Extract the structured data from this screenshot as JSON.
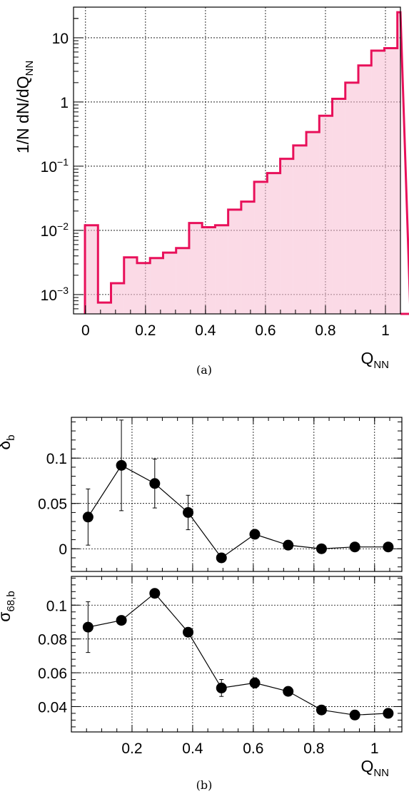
{
  "chart_data": [
    {
      "type": "histogram",
      "panel_label": "(a)",
      "ylabel": "1/N dN/dQ",
      "ylabel_sub": "NN",
      "xlabel": "Q",
      "xlabel_sub": "NN",
      "xlim": [
        -0.04,
        1.05
      ],
      "ylim": [
        0.0005,
        30
      ],
      "y_scale": "log",
      "grid": true,
      "x_ticks": [
        0,
        0.2,
        0.4,
        0.6,
        0.8,
        1
      ],
      "x_tick_labels": [
        "0",
        "0.2",
        "0.4",
        "0.6",
        "0.8",
        "1"
      ],
      "y_ticks": [
        0.001,
        0.01,
        0.1,
        1,
        10
      ],
      "y_tick_labels": [
        {
          "base": "10",
          "exp": "−3"
        },
        {
          "base": "10",
          "exp": "−2"
        },
        {
          "base": "10",
          "exp": "−1"
        },
        {
          "base": "1",
          "exp": ""
        },
        {
          "base": "10",
          "exp": ""
        }
      ],
      "bin_width": 0.0434,
      "bin_edges_start": -0.0018,
      "values": [
        0.012,
        0.00075,
        0.0015,
        0.0038,
        0.0031,
        0.0037,
        0.0045,
        0.0053,
        0.013,
        0.0112,
        0.012,
        0.021,
        0.028,
        0.057,
        0.078,
        0.13,
        0.21,
        0.34,
        0.61,
        1.12,
        2.0,
        3.7,
        6.3,
        6.9,
        25,
        0.00035
      ],
      "colors": {
        "line": "#e8105a",
        "fill": "#f7bcd2"
      }
    },
    {
      "type": "scatter",
      "panel_label": "(b)",
      "ylabel": "δ",
      "ylabel_sub": "b",
      "xlim": [
        0,
        1.09
      ],
      "ylim": [
        -0.025,
        0.145
      ],
      "grid": true,
      "y_ticks": [
        0,
        0.05,
        0.1
      ],
      "y_tick_labels": [
        "0",
        "0.05",
        "0.1"
      ],
      "x_ticks": [
        0.2,
        0.4,
        0.6,
        0.8,
        1
      ],
      "x": [
        0.055,
        0.165,
        0.275,
        0.385,
        0.495,
        0.605,
        0.715,
        0.825,
        0.935,
        1.045
      ],
      "values": [
        0.035,
        0.092,
        0.072,
        0.04,
        -0.01,
        0.016,
        0.004,
        0.0,
        0.002,
        0.002
      ],
      "errors": [
        0.031,
        0.05,
        0.027,
        0.019,
        0.004,
        0.003,
        0.002,
        0.002,
        0.002,
        0.002
      ]
    },
    {
      "type": "scatter",
      "ylabel": "σ",
      "ylabel_sub": "68,b",
      "xlabel": "Q",
      "xlabel_sub": "NN",
      "xlim": [
        0,
        1.09
      ],
      "ylim": [
        0.025,
        0.117
      ],
      "grid": true,
      "y_ticks": [
        0.04,
        0.06,
        0.08,
        0.1
      ],
      "y_tick_labels": [
        "0.04",
        "0.06",
        "0.08",
        "0.1"
      ],
      "x_ticks": [
        0.2,
        0.4,
        0.6,
        0.8,
        1
      ],
      "x_tick_labels": [
        "0.2",
        "0.4",
        "0.6",
        "0.8",
        "1"
      ],
      "x": [
        0.055,
        0.165,
        0.275,
        0.385,
        0.495,
        0.605,
        0.715,
        0.825,
        0.935,
        1.045
      ],
      "values": [
        0.087,
        0.091,
        0.107,
        0.084,
        0.051,
        0.054,
        0.049,
        0.038,
        0.035,
        0.036
      ],
      "errors": [
        0.015,
        0.002,
        0.002,
        0.002,
        0.005,
        0.003,
        0.002,
        0.002,
        0.002,
        0.002
      ]
    }
  ]
}
